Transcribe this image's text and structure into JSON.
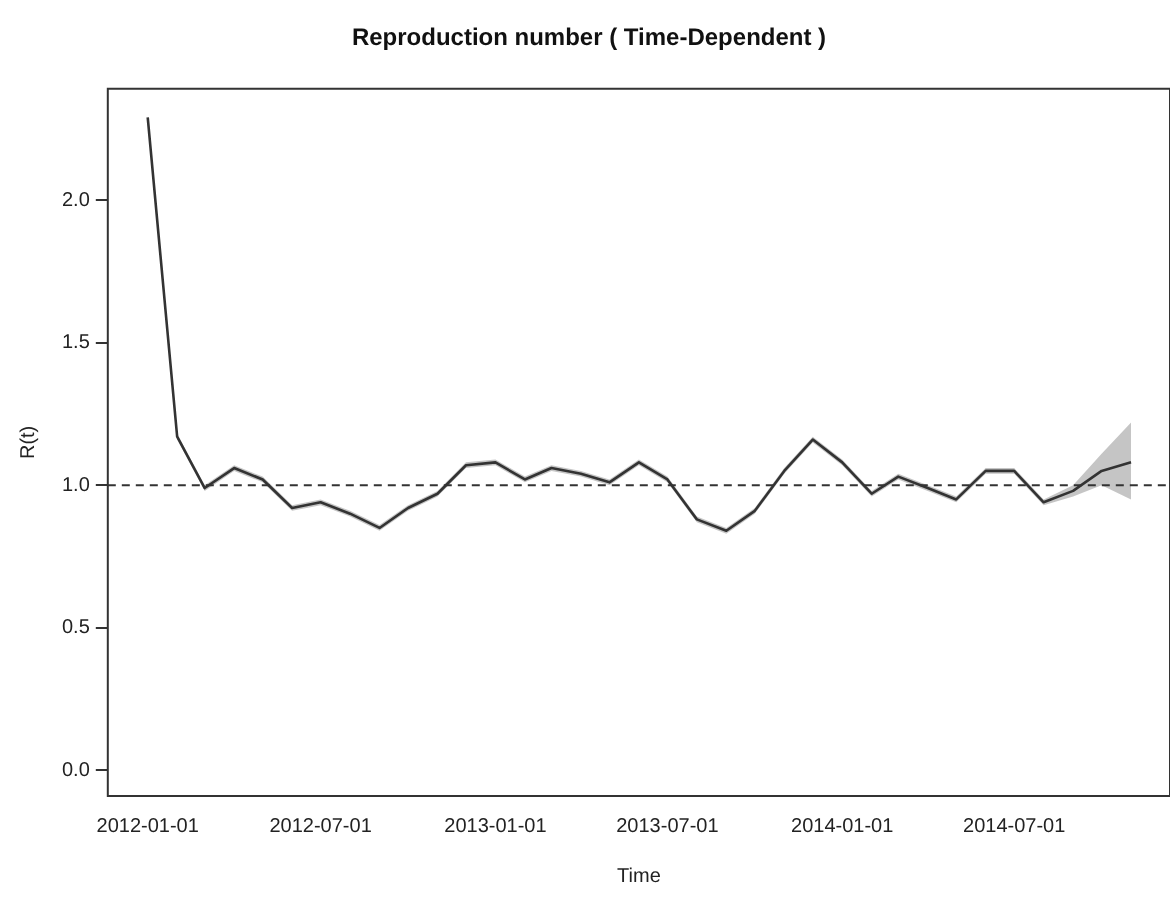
{
  "chart_data": {
    "type": "line",
    "title": "Reproduction number ( Time-Dependent )",
    "xlabel": "Time",
    "ylabel": "R(t)",
    "x": [
      "2012-01",
      "2012-02",
      "2012-03",
      "2012-04",
      "2012-05",
      "2012-06",
      "2012-07",
      "2012-08",
      "2012-09",
      "2012-10",
      "2012-11",
      "2012-12",
      "2013-01",
      "2013-02",
      "2013-03",
      "2013-04",
      "2013-05",
      "2013-06",
      "2013-07",
      "2013-08",
      "2013-09",
      "2013-10",
      "2013-11",
      "2013-12",
      "2014-01",
      "2014-02",
      "2014-03",
      "2014-04",
      "2014-05",
      "2014-06",
      "2014-07",
      "2014-08",
      "2014-09",
      "2014-10",
      "2014-11"
    ],
    "series": [
      {
        "color": "#333333",
        "values": [
          2.29,
          1.17,
          0.99,
          1.06,
          1.02,
          0.92,
          0.94,
          0.9,
          0.85,
          0.92,
          0.97,
          1.07,
          1.08,
          1.02,
          1.06,
          1.04,
          1.01,
          1.08,
          1.02,
          0.88,
          0.84,
          0.91,
          1.05,
          1.16,
          1.08,
          0.97,
          1.03,
          0.99,
          0.95,
          1.05,
          1.05,
          0.94,
          0.98,
          1.05,
          1.08
        ],
        "lower": [
          2.29,
          1.16,
          0.98,
          1.05,
          1.01,
          0.91,
          0.93,
          0.89,
          0.84,
          0.91,
          0.96,
          1.06,
          1.07,
          1.01,
          1.05,
          1.03,
          1.0,
          1.07,
          1.01,
          0.87,
          0.83,
          0.9,
          1.04,
          1.15,
          1.07,
          0.96,
          1.02,
          0.98,
          0.94,
          1.04,
          1.04,
          0.93,
          0.96,
          1.0,
          0.95
        ],
        "upper": [
          2.29,
          1.18,
          1.0,
          1.07,
          1.03,
          0.93,
          0.95,
          0.91,
          0.86,
          0.93,
          0.98,
          1.08,
          1.09,
          1.03,
          1.07,
          1.05,
          1.02,
          1.09,
          1.03,
          0.89,
          0.85,
          0.92,
          1.06,
          1.17,
          1.09,
          0.98,
          1.04,
          1.0,
          0.96,
          1.06,
          1.06,
          0.95,
          1.0,
          1.11,
          1.22
        ]
      }
    ],
    "xlim": [
      "2011-11-20",
      "2014-12-12"
    ],
    "xticks": [
      "2012-01-01",
      "2012-07-01",
      "2013-01-01",
      "2013-07-01",
      "2014-01-01",
      "2014-07-01"
    ],
    "ylim": [
      -0.09,
      2.39
    ],
    "yticks": [
      {
        "value": 0,
        "label": "0.0"
      },
      0.5,
      {
        "value": 1,
        "label": "1.0"
      },
      1.5,
      {
        "value": 2,
        "label": "2.0"
      }
    ],
    "ref_lines": [
      {
        "axis": "y",
        "value": 1.0,
        "color": "#333333",
        "line_style": "dashed"
      }
    ],
    "grid": false,
    "legend": false,
    "marker": "none",
    "line_style": "solid"
  }
}
